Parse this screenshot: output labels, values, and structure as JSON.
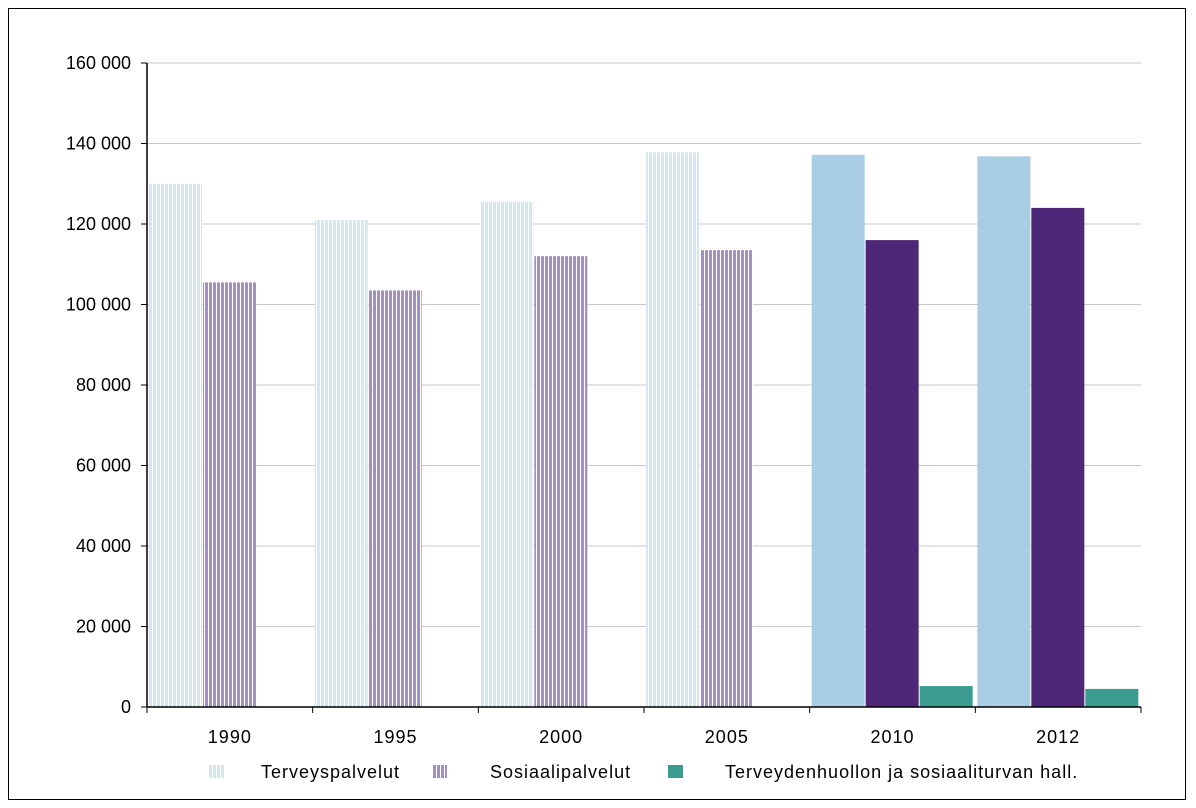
{
  "chart_data": {
    "type": "bar",
    "title": "",
    "xlabel": "",
    "ylabel": "",
    "categories": [
      "1990",
      "1995",
      "2000",
      "2005",
      "2010",
      "2012"
    ],
    "ylim": [
      0,
      160000
    ],
    "yticks": [
      0,
      20000,
      40000,
      60000,
      80000,
      100000,
      120000,
      140000,
      160000
    ],
    "ytick_labels": [
      "0",
      "20 000",
      "40 000",
      "60 000",
      "80 000",
      "100 000",
      "120 000",
      "140 000",
      "160 000"
    ],
    "grid": true,
    "legend_position": "bottom",
    "series": [
      {
        "name": "Terveyspalvelut",
        "values": [
          130000,
          121000,
          125500,
          137800,
          137200,
          136800
        ],
        "color": "#a9cde4",
        "hatched_color": "#d4e6f2"
      },
      {
        "name": "Sosiaalipalvelut",
        "values": [
          105500,
          103500,
          112000,
          113500,
          116000,
          124000
        ],
        "color": "#4f2779",
        "hatched_color": "#a48fc2"
      },
      {
        "name": "Terveydenhuollon ja sosiaaliturvan hall.",
        "values": [
          null,
          null,
          null,
          null,
          5200,
          4500
        ],
        "color": "#3a9b8e",
        "hatched_color": "#3a9b8e"
      }
    ],
    "hatched_categories": [
      "1990",
      "1995",
      "2000",
      "2005"
    ]
  }
}
